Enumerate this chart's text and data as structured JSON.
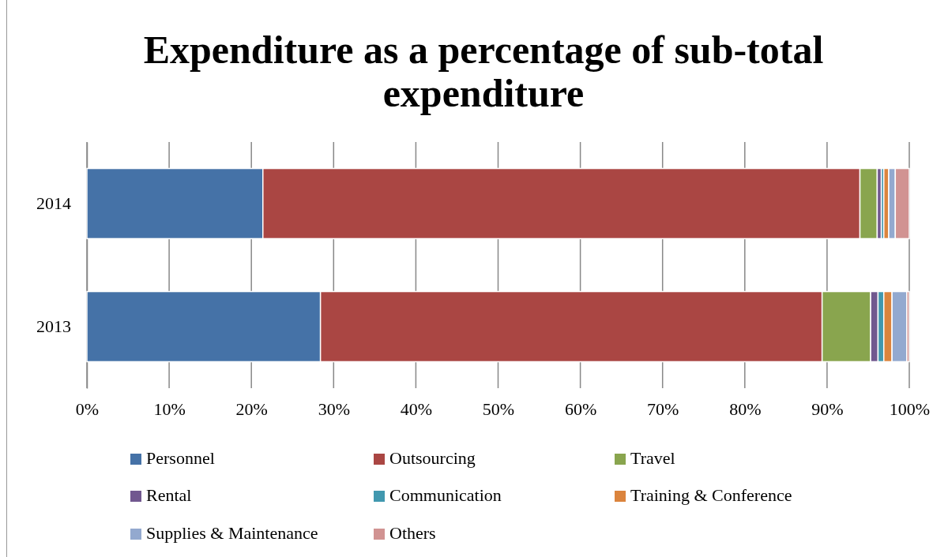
{
  "chart_data": {
    "type": "bar",
    "orientation": "horizontal",
    "stacked": true,
    "title": "Expenditure as a percentage of sub-total expenditure",
    "categories": [
      "2014",
      "2013"
    ],
    "series": [
      {
        "name": "Personnel",
        "color": "#4572a7",
        "values": [
          21.4,
          28.4
        ]
      },
      {
        "name": "Outsourcing",
        "color": "#aa4643",
        "values": [
          72.6,
          61.0
        ]
      },
      {
        "name": "Travel",
        "color": "#89a54e",
        "values": [
          2.1,
          5.9
        ]
      },
      {
        "name": "Rental",
        "color": "#71588f",
        "values": [
          0.5,
          0.9
        ]
      },
      {
        "name": "Communication",
        "color": "#4198af",
        "values": [
          0.3,
          0.7
        ]
      },
      {
        "name": "Training & Conference",
        "color": "#db843d",
        "values": [
          0.6,
          1.0
        ]
      },
      {
        "name": "Supplies & Maintenance",
        "color": "#93a9cf",
        "values": [
          0.8,
          1.8
        ]
      },
      {
        "name": "Others",
        "color": "#d19392",
        "values": [
          1.7,
          0.3
        ]
      }
    ],
    "xlim": [
      0,
      100
    ],
    "xticks": [
      {
        "value": 0,
        "label": "0%"
      },
      {
        "value": 10,
        "label": "10%"
      },
      {
        "value": 20,
        "label": "20%"
      },
      {
        "value": 30,
        "label": "30%"
      },
      {
        "value": 40,
        "label": "40%"
      },
      {
        "value": 50,
        "label": "50%"
      },
      {
        "value": 60,
        "label": "60%"
      },
      {
        "value": 70,
        "label": "70%"
      },
      {
        "value": 80,
        "label": "80%"
      },
      {
        "value": 90,
        "label": "90%"
      },
      {
        "value": 100,
        "label": "100%"
      }
    ],
    "grid": "x",
    "legend": "bottom"
  }
}
